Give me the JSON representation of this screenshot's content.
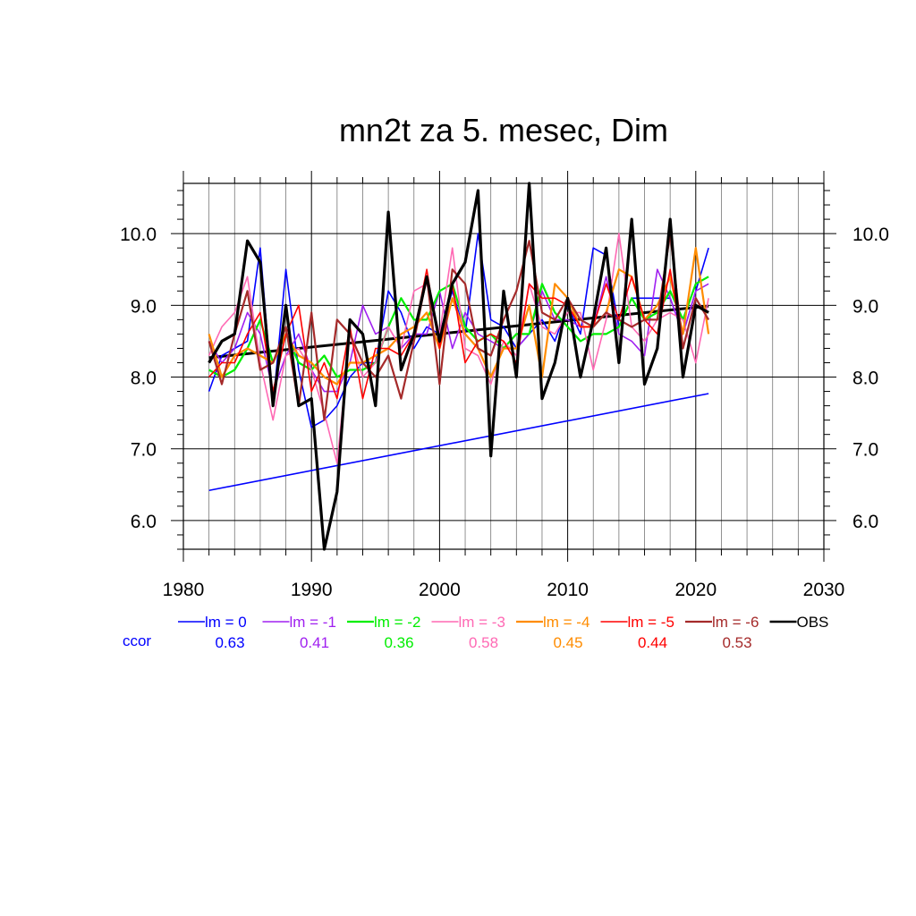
{
  "chart_data": {
    "type": "line",
    "title": "mn2t za 5. mesec, Dim",
    "xlim": [
      1980,
      2030
    ],
    "ylim": [
      5.6,
      10.7
    ],
    "xticks": [
      1980,
      1990,
      2000,
      2010,
      2020,
      2030
    ],
    "xtick_labels": [
      "1980",
      "1990",
      "2000",
      "2010",
      "2020",
      "2030"
    ],
    "yticks": [
      6.0,
      7.0,
      8.0,
      9.0,
      10.0
    ],
    "ytick_labels": [
      "6.0",
      "7.0",
      "8.0",
      "9.0",
      "10.0"
    ],
    "grid": true,
    "legend_position": "bottom",
    "ccor_label": "ccor",
    "ccor_color": "#0000ff",
    "x": [
      1982,
      1983,
      1984,
      1985,
      1986,
      1987,
      1988,
      1989,
      1990,
      1991,
      1992,
      1993,
      1994,
      1995,
      1996,
      1997,
      1998,
      1999,
      2000,
      2001,
      2002,
      2003,
      2004,
      2005,
      2006,
      2007,
      2008,
      2009,
      2010,
      2011,
      2012,
      2013,
      2014,
      2015,
      2016,
      2017,
      2018,
      2019,
      2020,
      2021
    ],
    "series": [
      {
        "name": "lm = 0",
        "color": "#0000ff",
        "ccor": "0.63",
        "width": 1.6,
        "values": [
          7.8,
          8.3,
          8.4,
          8.5,
          9.8,
          7.6,
          9.5,
          8.1,
          7.3,
          7.4,
          7.6,
          8.0,
          8.2,
          8.2,
          9.2,
          8.9,
          8.4,
          8.7,
          8.6,
          9.2,
          8.6,
          10.0,
          8.8,
          8.7,
          8.4,
          8.6,
          8.8,
          8.5,
          9.0,
          8.6,
          9.8,
          9.7,
          8.7,
          9.1,
          9.1,
          9.1,
          9.1,
          8.6,
          9.2,
          9.8
        ]
      },
      {
        "name": "lm = -1",
        "color": "#a020f0",
        "ccor": "0.41",
        "width": 1.6,
        "values": [
          8.5,
          8.2,
          8.4,
          8.9,
          8.6,
          7.8,
          8.3,
          8.6,
          8.1,
          7.8,
          7.8,
          8.2,
          9.0,
          8.6,
          8.7,
          8.4,
          8.6,
          8.6,
          9.2,
          8.4,
          8.9,
          8.6,
          8.5,
          8.4,
          8.4,
          8.6,
          9.2,
          8.8,
          8.8,
          8.7,
          8.7,
          9.4,
          8.6,
          8.5,
          8.3,
          9.5,
          9.1,
          8.6,
          9.2,
          9.3
        ]
      },
      {
        "name": "lm = -2",
        "color": "#00ee00",
        "ccor": "0.36",
        "width": 2.2,
        "values": [
          8.1,
          8.0,
          8.1,
          8.4,
          8.8,
          8.2,
          8.6,
          8.2,
          8.1,
          8.3,
          8.0,
          8.1,
          8.1,
          8.2,
          8.7,
          9.1,
          8.8,
          8.8,
          9.2,
          9.3,
          8.7,
          8.5,
          8.6,
          8.4,
          8.6,
          8.6,
          9.3,
          8.9,
          8.7,
          8.5,
          8.6,
          8.6,
          8.7,
          9.1,
          8.8,
          8.9,
          9.2,
          8.8,
          9.3,
          9.4
        ]
      },
      {
        "name": "lm = -3",
        "color": "#ff69b4",
        "ccor": "0.58",
        "width": 1.6,
        "values": [
          8.3,
          8.7,
          8.9,
          9.4,
          8.2,
          7.4,
          8.3,
          8.4,
          8.1,
          7.5,
          6.8,
          8.6,
          8.0,
          8.2,
          8.7,
          8.4,
          9.2,
          9.3,
          8.6,
          9.8,
          8.4,
          8.3,
          7.9,
          8.5,
          8.3,
          9.3,
          8.7,
          8.6,
          8.9,
          8.9,
          8.1,
          8.8,
          10.0,
          8.7,
          8.5,
          8.8,
          8.9,
          8.8,
          8.2,
          9.1
        ]
      },
      {
        "name": "lm = -4",
        "color": "#ff8c00",
        "ccor": "0.45",
        "width": 2.2,
        "values": [
          8.6,
          8.0,
          8.3,
          8.4,
          8.3,
          8.2,
          8.6,
          8.3,
          8.2,
          8.0,
          7.9,
          8.2,
          8.2,
          8.3,
          8.4,
          8.6,
          8.7,
          8.9,
          8.4,
          9.1,
          8.6,
          8.4,
          8.0,
          8.4,
          8.4,
          9.0,
          8.0,
          9.3,
          9.1,
          8.7,
          8.7,
          8.9,
          9.5,
          9.4,
          8.8,
          9.0,
          9.4,
          8.6,
          9.8,
          8.6
        ]
      },
      {
        "name": "lm = -5",
        "color": "#ff0000",
        "ccor": "0.44",
        "width": 1.6,
        "values": [
          8.0,
          8.2,
          8.2,
          8.6,
          8.9,
          7.8,
          8.6,
          9.0,
          7.8,
          8.2,
          7.7,
          8.7,
          7.7,
          8.4,
          8.4,
          8.3,
          8.6,
          9.5,
          8.4,
          9.3,
          8.2,
          8.5,
          8.6,
          8.5,
          8.2,
          9.3,
          9.1,
          9.1,
          9.0,
          8.7,
          8.7,
          9.3,
          8.8,
          9.4,
          8.8,
          8.6,
          9.5,
          8.4,
          9.1,
          8.8
        ]
      },
      {
        "name": "lm = -6",
        "color": "#a52a2a",
        "ccor": "0.53",
        "width": 2.2,
        "values": [
          8.5,
          7.9,
          8.6,
          9.2,
          8.1,
          8.2,
          8.7,
          7.6,
          8.9,
          7.4,
          8.8,
          8.6,
          8.2,
          8.0,
          8.3,
          7.7,
          8.5,
          9.4,
          7.9,
          9.5,
          9.3,
          8.4,
          8.3,
          8.8,
          9.2,
          9.9,
          8.9,
          8.8,
          9.1,
          8.8,
          8.7,
          8.9,
          8.8,
          8.7,
          8.8,
          8.8,
          10.0,
          8.4,
          9.1,
          8.8
        ]
      },
      {
        "name": "OBS",
        "color": "#000000",
        "ccor": "",
        "width": 3.2,
        "values": [
          8.2,
          8.5,
          8.6,
          9.9,
          9.6,
          7.6,
          9.0,
          7.6,
          7.7,
          5.6,
          6.4,
          8.8,
          8.6,
          7.6,
          10.3,
          8.1,
          8.6,
          9.4,
          8.5,
          9.3,
          9.6,
          10.6,
          6.9,
          9.2,
          8.0,
          10.7,
          7.7,
          8.2,
          9.1,
          8.0,
          8.8,
          9.8,
          8.2,
          10.2,
          7.9,
          8.4,
          10.2,
          8.0,
          9.0,
          8.9
        ]
      }
    ],
    "trend_lines": [
      {
        "name": "lm = 0 trend",
        "color": "#0000ff",
        "width": 1.6,
        "x": [
          1982,
          2021
        ],
        "y": [
          6.42,
          7.77
        ]
      },
      {
        "name": "OBS trend",
        "color": "#000000",
        "width": 3.0,
        "x": [
          1982,
          2021
        ],
        "y": [
          8.27,
          8.99
        ]
      }
    ]
  }
}
